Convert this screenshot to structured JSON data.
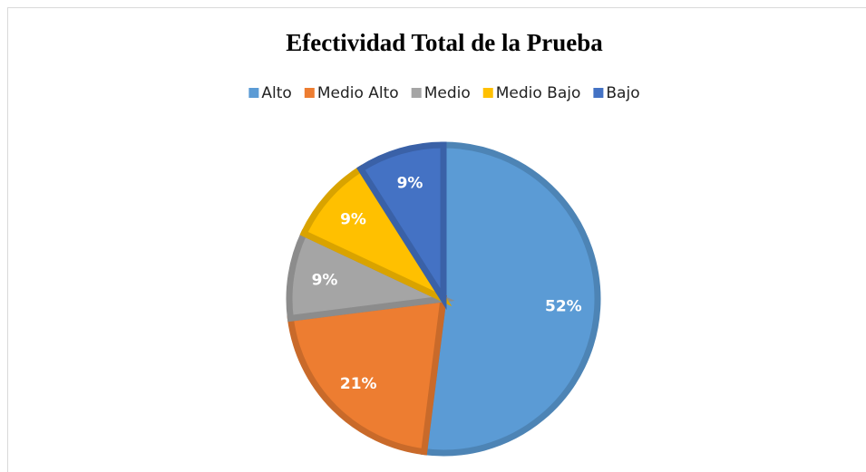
{
  "chart_data": {
    "type": "pie",
    "title": "Efectividad Total de la Prueba",
    "categories": [
      "Alto",
      "Medio Alto",
      "Medio",
      "Medio Bajo",
      "Bajo"
    ],
    "values": [
      52,
      21,
      9,
      9,
      9
    ],
    "value_labels": [
      "52%",
      "21%",
      "9%",
      "9%",
      "9%"
    ],
    "colors": [
      "#5b9bd5",
      "#ed7d31",
      "#a5a5a5",
      "#ffc000",
      "#4472c4"
    ],
    "legend": "top"
  }
}
